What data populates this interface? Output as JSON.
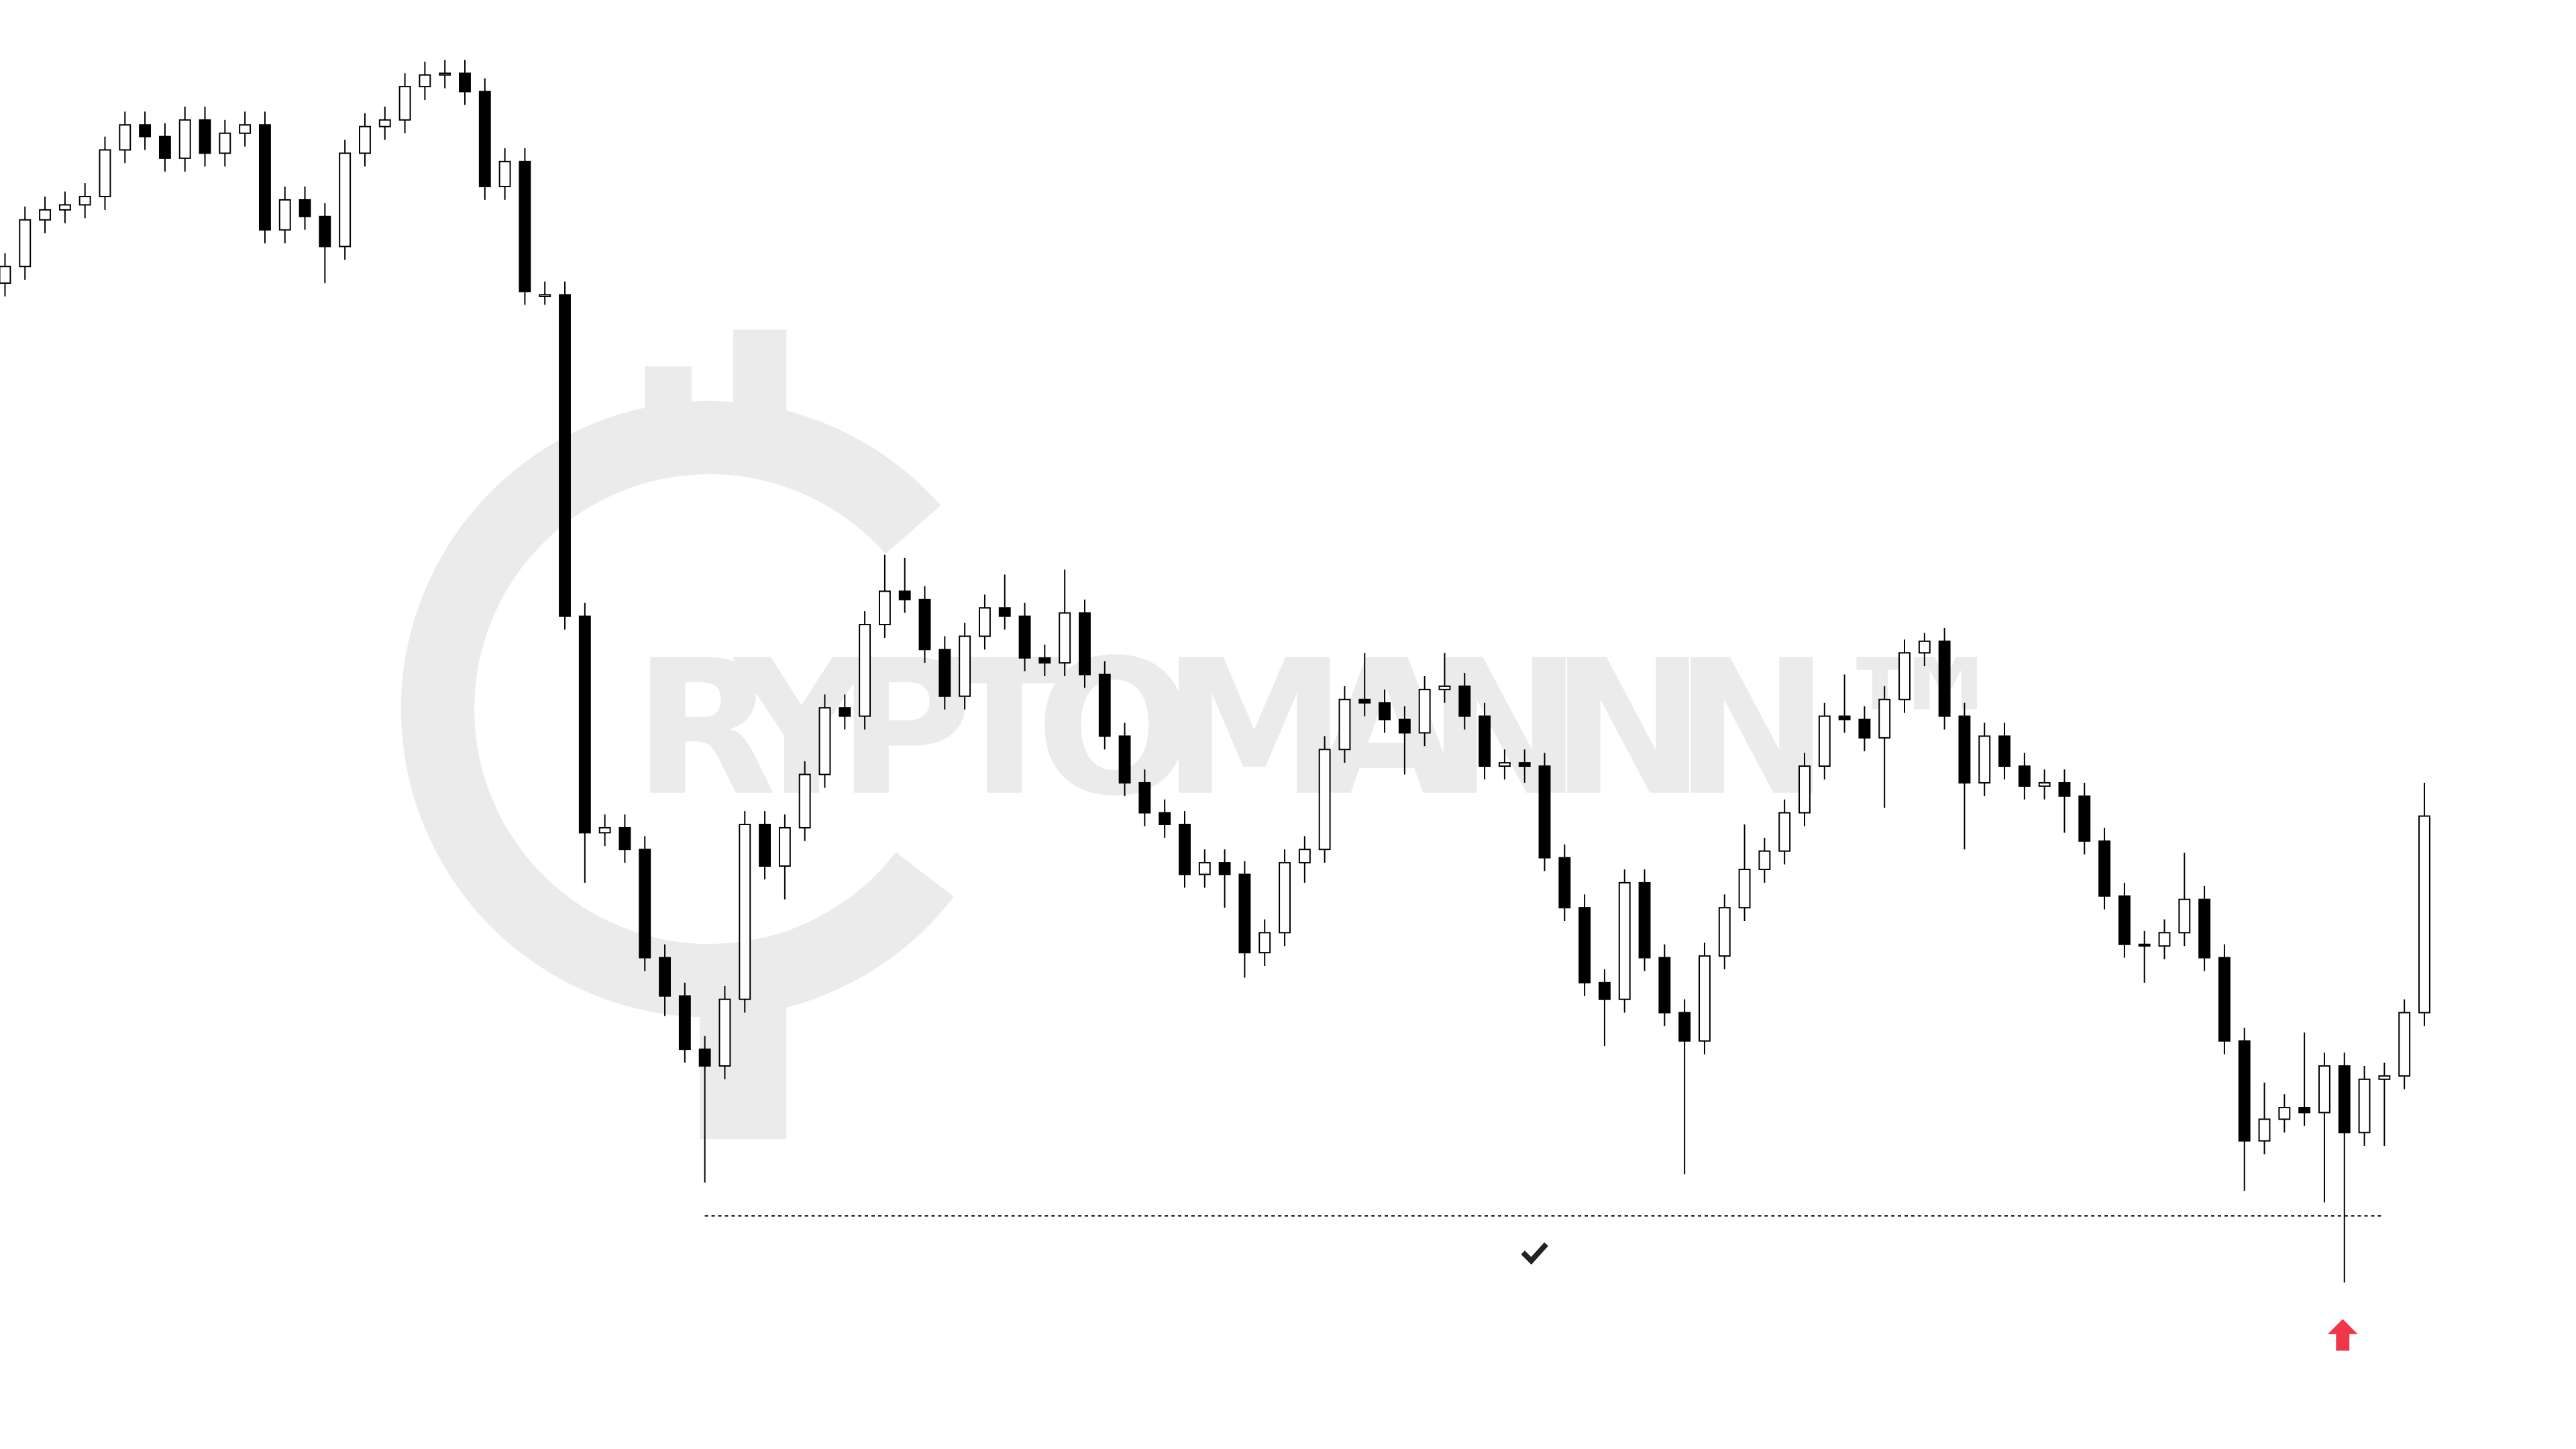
{
  "chart_data": {
    "type": "candlestick",
    "watermark": "RYPTOMANNN ™",
    "ylim": [
      0,
      870
    ],
    "up_color": "#ffffff",
    "down_color": "#000000",
    "support": 140,
    "open": [
      700,
      710,
      738,
      744,
      747,
      752,
      780,
      795,
      788,
      775,
      798,
      778,
      790,
      795,
      732,
      750,
      740,
      722,
      778,
      794,
      798,
      818,
      825,
      826,
      815,
      758,
      773,
      693,
      693,
      500,
      370,
      373,
      360,
      295,
      272,
      240,
      230,
      270,
      375,
      350,
      373,
      405,
      445,
      440,
      495,
      515,
      510,
      480,
      452,
      488,
      505,
      500,
      475,
      472,
      502,
      465,
      428,
      400,
      382,
      375,
      345,
      352,
      345,
      298,
      310,
      352,
      360,
      420,
      450,
      448,
      438,
      430,
      456,
      458,
      440,
      410,
      412,
      410,
      355,
      325,
      280,
      270,
      340,
      295,
      262,
      245,
      296,
      325,
      348,
      359,
      382,
      410,
      440,
      438,
      427,
      450,
      478,
      485,
      440,
      400,
      428,
      410,
      398,
      400,
      392,
      365,
      332,
      303,
      302,
      310,
      330,
      295,
      245,
      185,
      198,
      205,
      202,
      230,
      190,
      222,
      224,
      262
    ],
    "high": [
      718,
      746,
      752,
      755,
      760,
      788,
      803,
      803,
      796,
      806,
      806,
      798,
      803,
      803,
      758,
      758,
      748,
      786,
      802,
      806,
      826,
      833,
      834,
      834,
      823,
      781,
      781,
      701,
      701,
      508,
      381,
      381,
      368,
      303,
      280,
      248,
      278,
      383,
      383,
      381,
      413,
      453,
      453,
      503,
      537,
      535,
      518,
      488,
      496,
      513,
      525,
      508,
      483,
      528,
      510,
      473,
      436,
      408,
      390,
      383,
      360,
      360,
      353,
      318,
      360,
      368,
      428,
      458,
      478,
      456,
      446,
      464,
      478,
      466,
      448,
      420,
      420,
      418,
      363,
      333,
      288,
      348,
      348,
      303,
      270,
      304,
      333,
      375,
      367,
      390,
      418,
      448,
      465,
      446,
      458,
      486,
      490,
      493,
      448,
      436,
      436,
      418,
      408,
      408,
      400,
      373,
      340,
      311,
      318,
      358,
      338,
      303,
      253,
      220,
      213,
      250,
      238,
      238,
      230,
      232,
      270,
      400
    ],
    "low": [
      692,
      702,
      730,
      736,
      739,
      744,
      772,
      780,
      767,
      767,
      770,
      770,
      782,
      724,
      724,
      732,
      700,
      714,
      770,
      786,
      790,
      810,
      817,
      807,
      750,
      750,
      687,
      687,
      492,
      340,
      362,
      352,
      287,
      260,
      232,
      160,
      222,
      262,
      342,
      330,
      365,
      397,
      432,
      432,
      487,
      502,
      472,
      444,
      444,
      480,
      492,
      467,
      464,
      464,
      457,
      420,
      392,
      374,
      367,
      337,
      337,
      325,
      283,
      290,
      302,
      340,
      352,
      412,
      440,
      430,
      405,
      422,
      448,
      432,
      402,
      402,
      400,
      347,
      317,
      272,
      242,
      262,
      287,
      254,
      165,
      237,
      288,
      317,
      340,
      351,
      374,
      402,
      430,
      419,
      385,
      442,
      470,
      432,
      360,
      392,
      402,
      390,
      390,
      370,
      357,
      324,
      295,
      280,
      294,
      302,
      287,
      237,
      155,
      177,
      190,
      194,
      148,
      100,
      182,
      182,
      216,
      254
    ],
    "close": [
      710,
      738,
      744,
      747,
      752,
      780,
      795,
      788,
      775,
      798,
      778,
      790,
      795,
      732,
      750,
      740,
      722,
      778,
      794,
      798,
      818,
      825,
      826,
      815,
      758,
      773,
      695,
      693,
      500,
      370,
      373,
      360,
      295,
      272,
      240,
      230,
      270,
      375,
      350,
      373,
      405,
      445,
      440,
      495,
      515,
      510,
      480,
      452,
      488,
      505,
      500,
      475,
      472,
      502,
      465,
      428,
      400,
      382,
      375,
      345,
      352,
      345,
      298,
      310,
      352,
      360,
      420,
      450,
      448,
      438,
      430,
      456,
      458,
      440,
      410,
      412,
      410,
      355,
      325,
      280,
      270,
      340,
      295,
      262,
      245,
      296,
      325,
      348,
      359,
      382,
      410,
      440,
      438,
      427,
      450,
      478,
      485,
      440,
      400,
      428,
      410,
      398,
      400,
      392,
      365,
      332,
      303,
      302,
      310,
      330,
      295,
      245,
      185,
      198,
      205,
      202,
      230,
      190,
      222,
      224,
      262,
      380
    ]
  }
}
